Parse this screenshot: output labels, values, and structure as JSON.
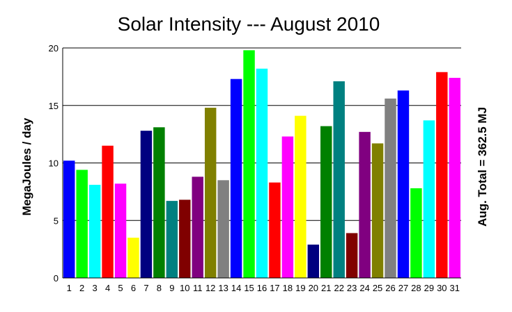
{
  "chart_data": {
    "type": "bar",
    "title": "Solar Intensity --- August 2010",
    "xlabel": "",
    "ylabel": "MegaJoules / day",
    "right_label": "Aug. Total = 362.5 MJ",
    "ylim": [
      0,
      20
    ],
    "yticks": [
      0,
      5,
      10,
      15,
      20
    ],
    "grid": "horizontal",
    "categories": [
      "1",
      "2",
      "3",
      "4",
      "5",
      "6",
      "7",
      "8",
      "9",
      "10",
      "11",
      "12",
      "13",
      "14",
      "15",
      "16",
      "17",
      "18",
      "19",
      "20",
      "21",
      "22",
      "23",
      "24",
      "25",
      "26",
      "27",
      "28",
      "29",
      "30",
      "31"
    ],
    "values": [
      10.2,
      9.4,
      8.1,
      11.5,
      8.2,
      3.5,
      12.8,
      13.1,
      6.7,
      6.8,
      8.8,
      14.8,
      8.5,
      17.3,
      19.8,
      18.2,
      8.3,
      12.3,
      14.1,
      2.9,
      13.2,
      17.1,
      3.9,
      12.7,
      11.7,
      15.6,
      16.3,
      7.8,
      13.7,
      17.9,
      17.4
    ],
    "colors": [
      "#0000ff",
      "#00ff00",
      "#00ffff",
      "#ff0000",
      "#ff00ff",
      "#ffff00",
      "#000080",
      "#008000",
      "#008080",
      "#800000",
      "#800080",
      "#808000",
      "#808080",
      "#0000ff",
      "#00ff00",
      "#00ffff",
      "#ff0000",
      "#ff00ff",
      "#ffff00",
      "#000080",
      "#008000",
      "#008080",
      "#800000",
      "#800080",
      "#808000",
      "#808080",
      "#0000ff",
      "#00ff00",
      "#00ffff",
      "#ff0000",
      "#ff00ff"
    ]
  }
}
